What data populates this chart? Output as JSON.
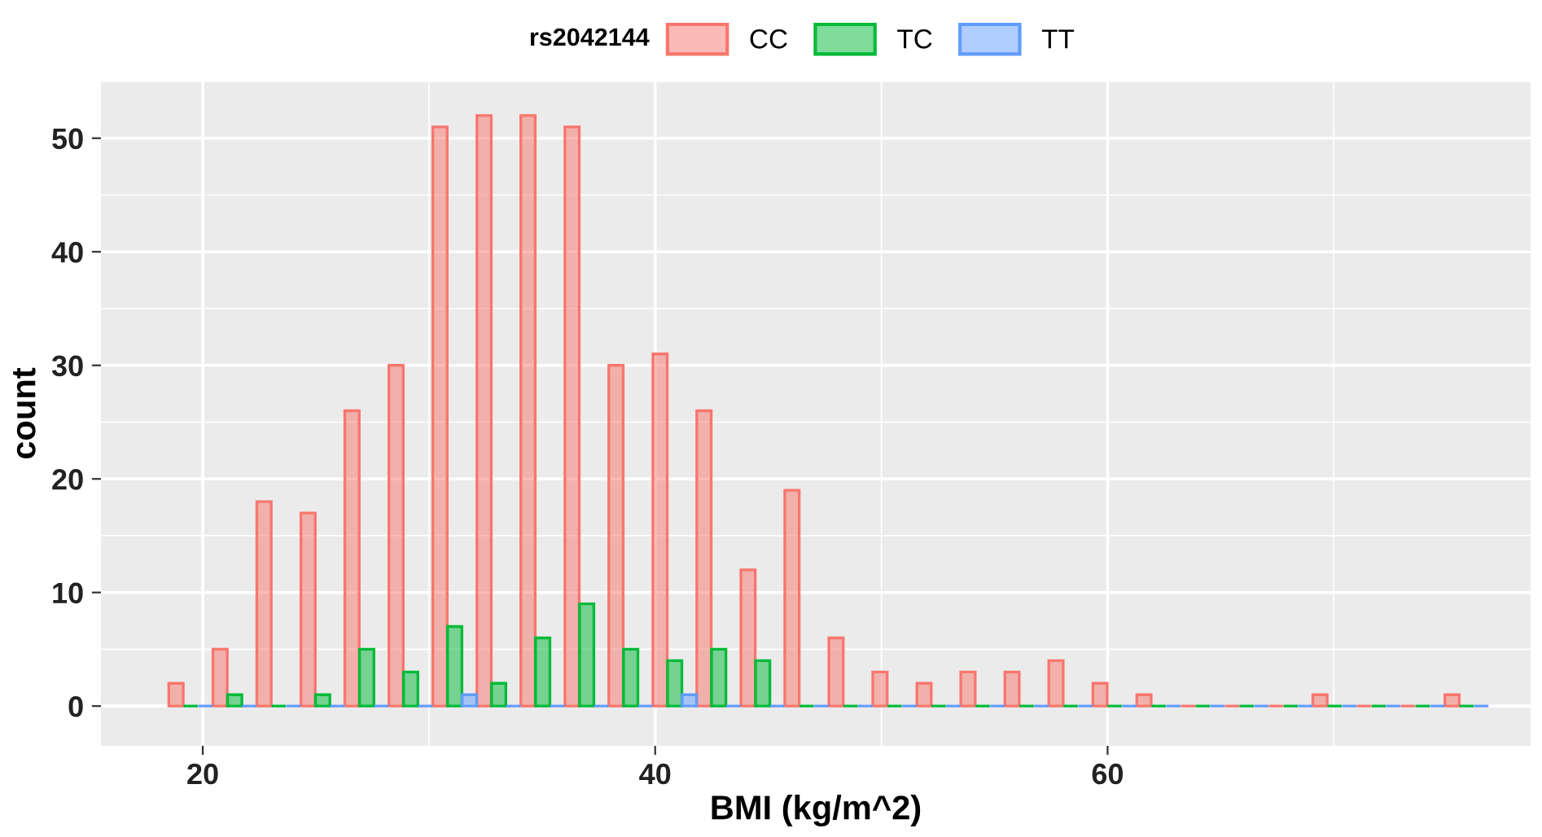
{
  "chart_data": {
    "type": "histogram",
    "xlabel": "BMI (kg/m^2)",
    "ylabel": "count",
    "legend_title": "rs2042144",
    "legend": "top",
    "grid": true,
    "bins": [
      18.5,
      20.45,
      22.39,
      24.34,
      26.28,
      28.23,
      30.17,
      32.12,
      34.06,
      36.01,
      37.95,
      39.9,
      41.84,
      43.79,
      45.73,
      47.68,
      49.62,
      51.57,
      53.51,
      55.46,
      57.4,
      59.35,
      61.29,
      63.24,
      65.18,
      67.13,
      69.07,
      71.02,
      72.96,
      74.91,
      76.85
    ],
    "series": [
      {
        "name": "CC",
        "color": "#f8766d",
        "values": [
          2,
          5,
          18,
          17,
          26,
          30,
          51,
          52,
          52,
          51,
          30,
          31,
          26,
          12,
          19,
          6,
          3,
          2,
          3,
          3,
          4,
          2,
          1,
          0,
          0,
          0,
          1,
          0,
          0,
          1
        ]
      },
      {
        "name": "TC",
        "color": "#00ba38",
        "values": [
          0,
          1,
          0,
          1,
          5,
          3,
          7,
          2,
          6,
          9,
          5,
          4,
          5,
          4,
          0,
          0,
          0,
          0,
          0,
          0,
          0,
          0,
          0,
          0,
          0,
          0,
          0,
          0,
          0,
          0
        ]
      },
      {
        "name": "TT",
        "color": "#619cff",
        "values": [
          0,
          0,
          0,
          0,
          0,
          0,
          1,
          0,
          0,
          0,
          0,
          1,
          0,
          0,
          0,
          0,
          0,
          0,
          0,
          0,
          0,
          0,
          0,
          0,
          0,
          0,
          0,
          0,
          0,
          0
        ]
      }
    ],
    "xlim": [
      15.5,
      78.7
    ],
    "ylim": [
      -3.5,
      55
    ],
    "xticks": [
      20,
      40,
      60
    ],
    "yticks": [
      0,
      10,
      20,
      30,
      40,
      50
    ]
  }
}
